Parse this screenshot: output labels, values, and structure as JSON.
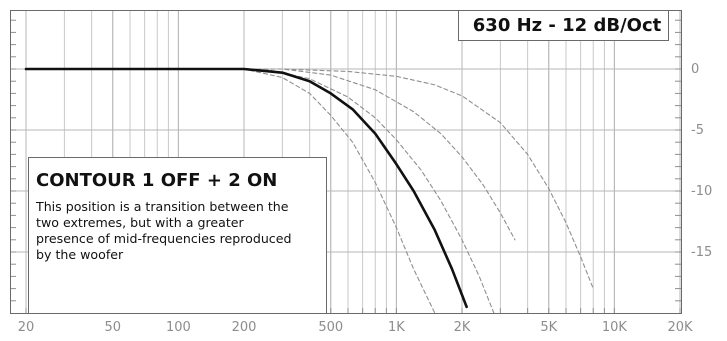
{
  "chart_data": {
    "type": "line",
    "title": "630 Hz - 12 dB/Oct",
    "x_scale": "log",
    "xlim": [
      20,
      20000
    ],
    "ylim": [
      -20,
      5
    ],
    "x_ticks": [
      {
        "value": 20,
        "label": "20"
      },
      {
        "value": 50,
        "label": "50"
      },
      {
        "value": 100,
        "label": "100"
      },
      {
        "value": 200,
        "label": "200"
      },
      {
        "value": 500,
        "label": "500"
      },
      {
        "value": 1000,
        "label": "1K"
      },
      {
        "value": 2000,
        "label": "2K"
      },
      {
        "value": 5000,
        "label": "5K"
      },
      {
        "value": 10000,
        "label": "10K"
      },
      {
        "value": 20000,
        "label": "20K"
      }
    ],
    "y_ticks": [
      {
        "value": 0,
        "label": "0"
      },
      {
        "value": -5,
        "label": "-5"
      },
      {
        "value": -10,
        "label": "-10"
      },
      {
        "value": -15,
        "label": "-15"
      }
    ],
    "grid": true,
    "series": [
      {
        "style": "solid",
        "x": [
          20,
          200,
          300,
          400,
          500,
          630,
          800,
          1000,
          1200,
          1500,
          1800,
          2100
        ],
        "values": [
          0,
          0,
          -0.3,
          -1,
          -2,
          -3.3,
          -5.3,
          -7.8,
          -10,
          -13.2,
          -16.4,
          -19.5
        ]
      },
      {
        "style": "dashed",
        "x": [
          20,
          200,
          300,
          400,
          500,
          630,
          800,
          1000,
          1200,
          1500
        ],
        "values": [
          0,
          0,
          -0.7,
          -2,
          -3.8,
          -6,
          -9.3,
          -13,
          -16.4,
          -20
        ]
      },
      {
        "style": "dashed",
        "x": [
          20,
          250,
          400,
          600,
          800,
          1000,
          1300,
          1600,
          2000,
          2400,
          2800
        ],
        "values": [
          0,
          0,
          -0.8,
          -2.3,
          -4,
          -5.8,
          -8.3,
          -10.8,
          -14,
          -17,
          -20
        ]
      },
      {
        "style": "dashed",
        "x": [
          20,
          300,
          500,
          800,
          1200,
          1600,
          2000,
          2500,
          3000,
          3500
        ],
        "values": [
          0,
          0,
          -0.5,
          -1.7,
          -3.5,
          -5.3,
          -7.2,
          -9.5,
          -11.8,
          -14
        ]
      },
      {
        "style": "dashed",
        "x": [
          20,
          300,
          600,
          1000,
          1500,
          2000,
          3000,
          4000,
          5000,
          6000,
          7000,
          8000
        ],
        "values": [
          0,
          0,
          -0.2,
          -0.6,
          -1.3,
          -2.2,
          -4.4,
          -7,
          -9.8,
          -12.6,
          -15.4,
          -18
        ]
      }
    ]
  },
  "note_box": {
    "title": "CONTOUR 1 OFF + 2 ON",
    "lines": [
      "This position is a transition between the",
      "two extremes, but with a greater",
      "presence of mid-frequencies reproduced",
      "by the woofer"
    ]
  }
}
